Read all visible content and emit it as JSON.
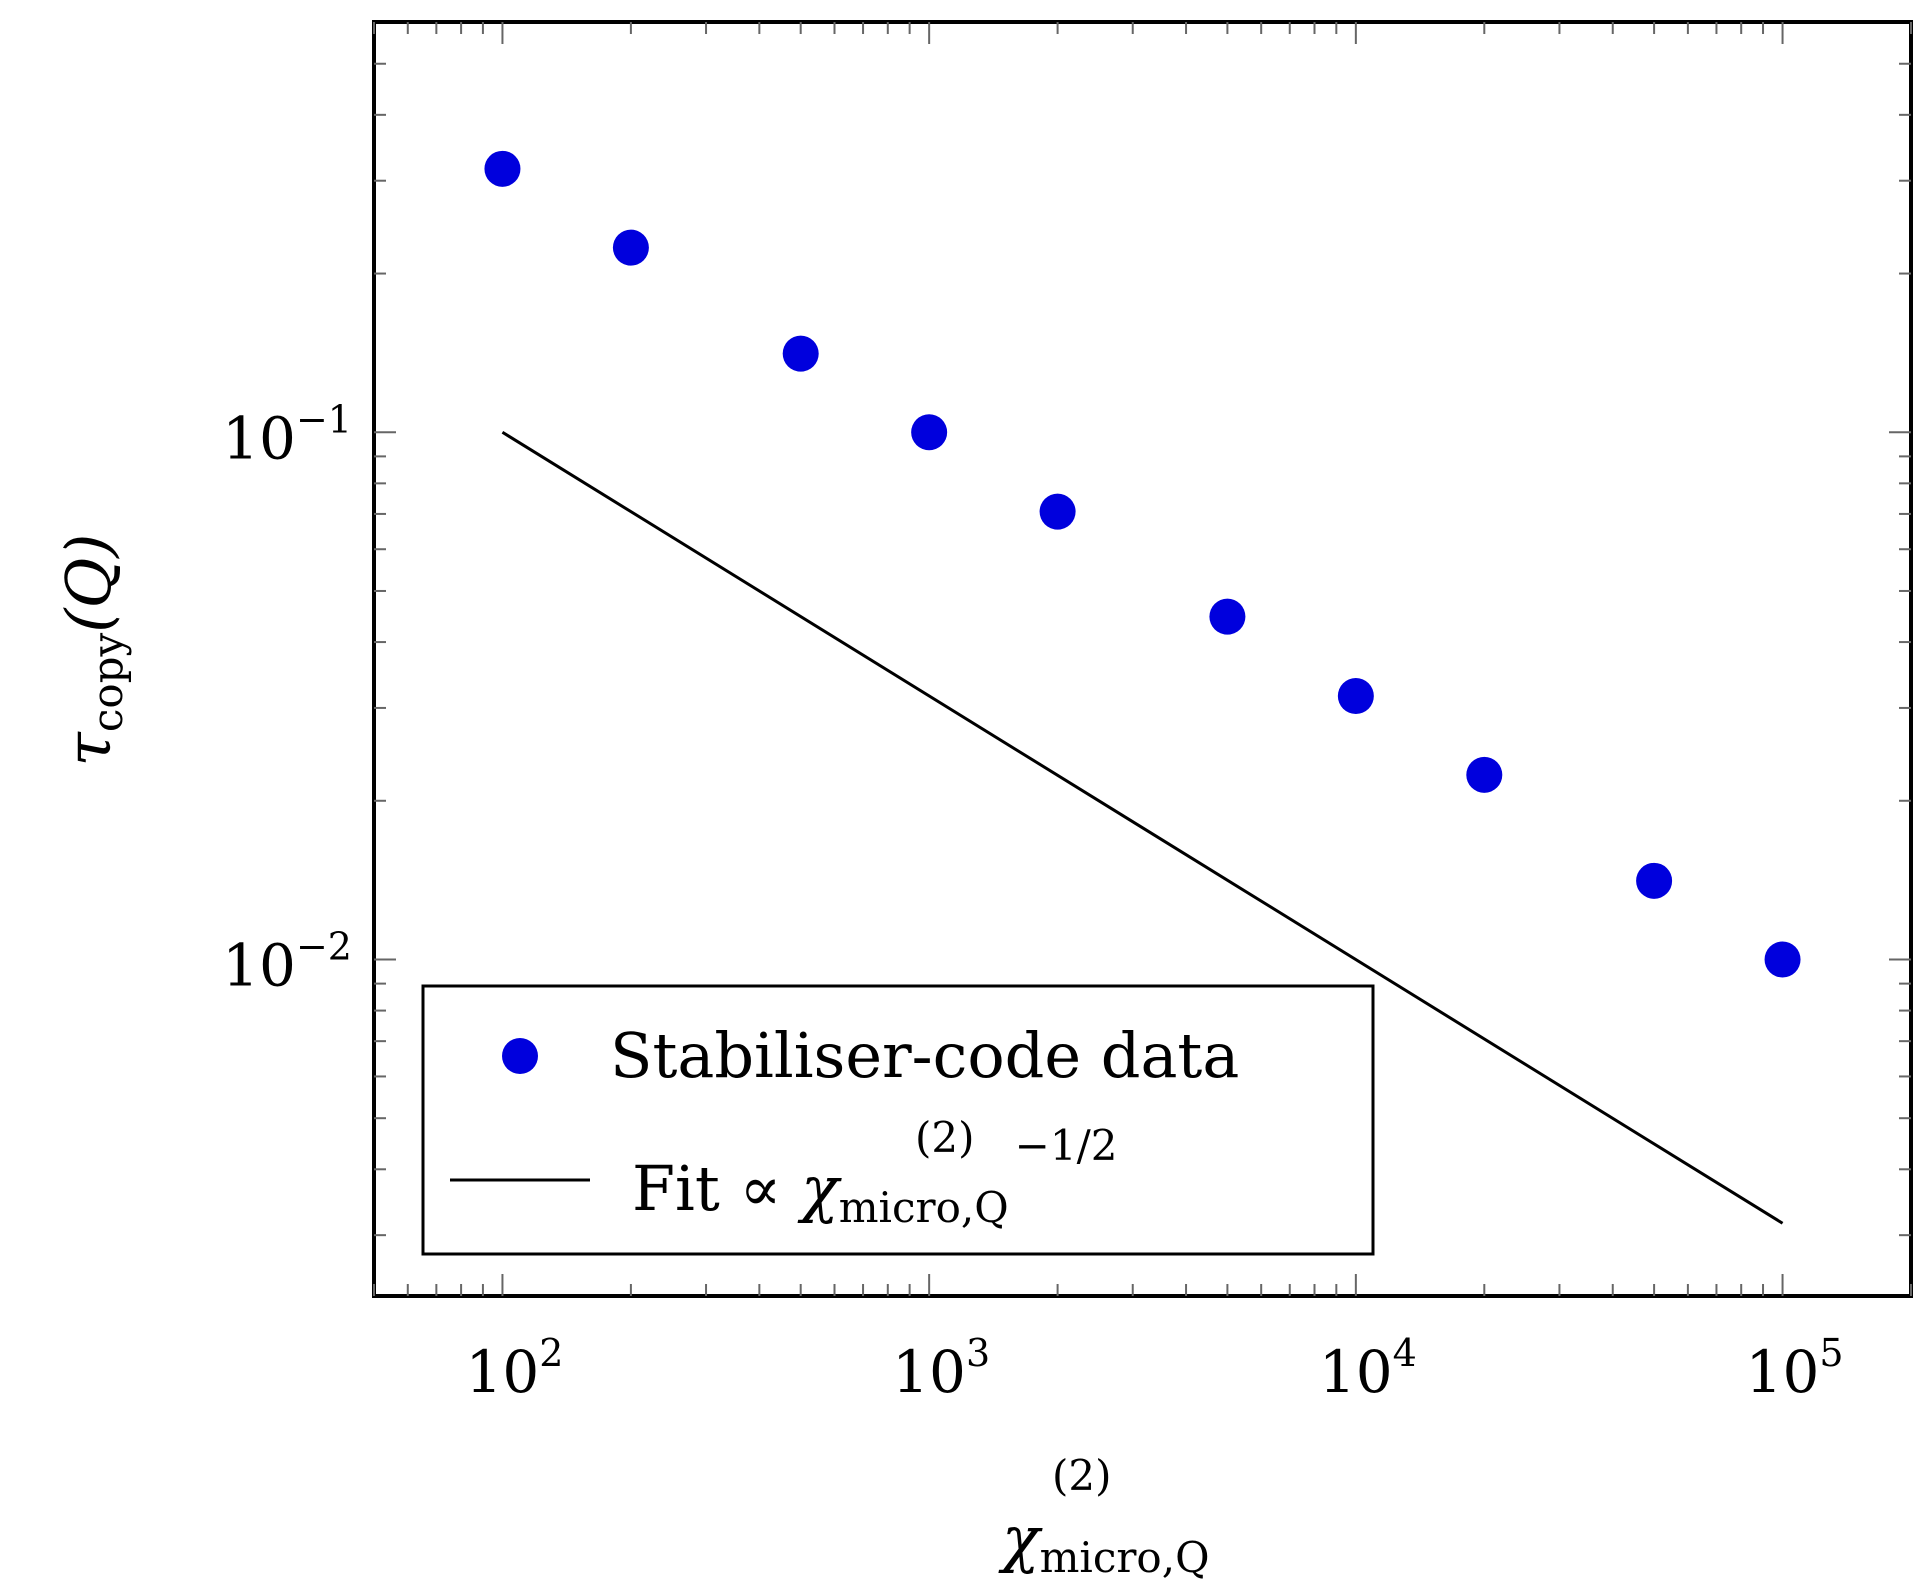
{
  "chart_data": {
    "type": "scatter",
    "x_scale": "log",
    "y_scale": "log",
    "xlim": [
      50,
      200000
    ],
    "ylim": [
      0.0023,
      0.6
    ],
    "x_ticks": [
      {
        "value": 100,
        "base": "10",
        "exp": "2"
      },
      {
        "value": 1000,
        "base": "10",
        "exp": "3"
      },
      {
        "value": 10000,
        "base": "10",
        "exp": "4"
      },
      {
        "value": 100000,
        "base": "10",
        "exp": "5"
      }
    ],
    "y_ticks": [
      {
        "value": 0.1,
        "base": "10",
        "exp": "−1"
      },
      {
        "value": 0.01,
        "base": "10",
        "exp": "−2"
      }
    ],
    "xlabel": {
      "symbol": "χ",
      "sup": "(2)",
      "sub": "micro,Q"
    },
    "ylabel": {
      "symbol": "τ",
      "sub": "copy",
      "rest": "(Q)"
    },
    "grid": false,
    "legend_position": "bottom-left",
    "series": [
      {
        "name": "Stabiliser-code data",
        "kind": "scatter",
        "color": "#0000dd",
        "x": [
          100,
          200,
          500,
          1000,
          2000,
          5000,
          10000,
          20000,
          50000,
          100000
        ],
        "y": [
          0.316,
          0.224,
          0.141,
          0.1,
          0.0707,
          0.0447,
          0.0316,
          0.0224,
          0.0141,
          0.01
        ]
      },
      {
        "name": "Fit ∝ χ(2)micro,Q −1/2",
        "kind": "line",
        "color": "#000000",
        "legend_parts": {
          "prefix": "Fit ∝ ",
          "symbol": "χ",
          "sup": "(2)",
          "sub": "micro,Q",
          "power": "−1/2"
        },
        "x": [
          100,
          100000
        ],
        "y": [
          0.1,
          0.00316
        ]
      }
    ]
  }
}
